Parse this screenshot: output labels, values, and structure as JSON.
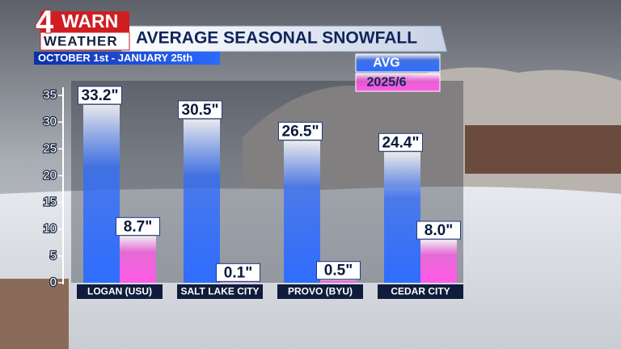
{
  "chart_data": {
    "type": "bar",
    "logo": {
      "number": "4",
      "word": "WARN",
      "subword": "WEATHER"
    },
    "title": "AVERAGE SEASONAL SNOWFALL",
    "subtitle": "OCTOBER 1st - JANUARY 25th",
    "categories": [
      "LOGAN (USU)",
      "SALT LAKE CITY",
      "PROVO (BYU)",
      "CEDAR CITY"
    ],
    "series": [
      {
        "name": "AVG",
        "color": "#2f6dff",
        "values": [
          33.2,
          30.5,
          26.5,
          24.4
        ],
        "value_labels": [
          "33.2\"",
          "30.5\"",
          "26.5\"",
          "24.4\""
        ]
      },
      {
        "name": "2025/6",
        "color": "#ff5ae6",
        "values": [
          8.7,
          0.1,
          0.5,
          8.0
        ],
        "value_labels": [
          "8.7\"",
          "0.1\"",
          "0.5\"",
          "8.0\""
        ]
      }
    ],
    "ylim": [
      0,
      35
    ],
    "yticks": [
      0,
      5,
      10,
      15,
      20,
      25,
      30,
      35
    ]
  }
}
